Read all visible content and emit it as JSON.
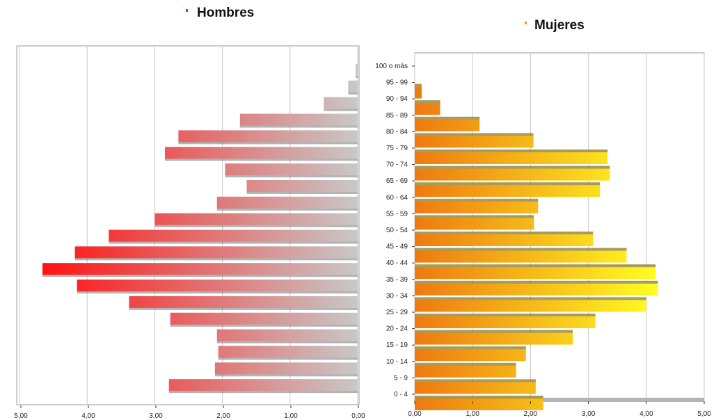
{
  "chart_data": [
    {
      "type": "bar",
      "orientation": "horizontal",
      "title": "Hombres",
      "title_marker_color": "#ff2020",
      "categories": [
        "100 o más",
        "95 - 99",
        "90 - 94",
        "85 - 89",
        "80 - 84",
        "75 - 79",
        "70 - 74",
        "65 - 69",
        "60 - 64",
        "55 - 59",
        "50 - 54",
        "45 - 49",
        "40 - 44",
        "35 - 39",
        "30 - 34",
        "25 - 29",
        "20 - 24",
        "15 - 19",
        "10 - 14",
        "5 - 9",
        "0 - 4"
      ],
      "values": [
        0.03,
        0.14,
        0.5,
        1.74,
        2.65,
        2.85,
        1.96,
        1.64,
        2.08,
        3.0,
        3.68,
        4.18,
        4.66,
        4.15,
        3.38,
        2.77,
        2.08,
        2.06,
        2.11,
        2.79,
        0
      ],
      "xlim": [
        5,
        0
      ],
      "xticks": [
        "5,00",
        "4,00",
        "3,00",
        "2,00",
        "1,00",
        "0,00"
      ],
      "grid": true,
      "color_start": "#ff1010",
      "color_end": "#c8c8c8"
    },
    {
      "type": "bar",
      "orientation": "horizontal",
      "title": "Mujeres",
      "title_marker_color": "#ff8c1a",
      "categories": [
        "100 o más",
        "95 - 99",
        "90 - 94",
        "85 - 89",
        "80 - 84",
        "75 - 79",
        "70 - 74",
        "65 - 69",
        "60 - 64",
        "55 - 59",
        "50 - 54",
        "45 - 49",
        "40 - 44",
        "35 - 39",
        "30 - 34",
        "25 - 29",
        "20 - 24",
        "15 - 19",
        "10 - 14",
        "5 - 9",
        "0 - 4"
      ],
      "values": [
        0.0,
        0.12,
        0.44,
        1.12,
        2.05,
        3.33,
        3.37,
        3.2,
        2.13,
        2.06,
        3.08,
        3.66,
        4.16,
        4.2,
        4.0,
        3.12,
        2.73,
        1.92,
        1.75,
        2.09,
        2.22
      ],
      "xlim": [
        0,
        5
      ],
      "xticks": [
        "0,00",
        "1,00",
        "2,00",
        "3,00",
        "4,00",
        "5,00"
      ],
      "grid": true,
      "color_start": "#ee7a10",
      "color_end": "#ffff22"
    }
  ]
}
